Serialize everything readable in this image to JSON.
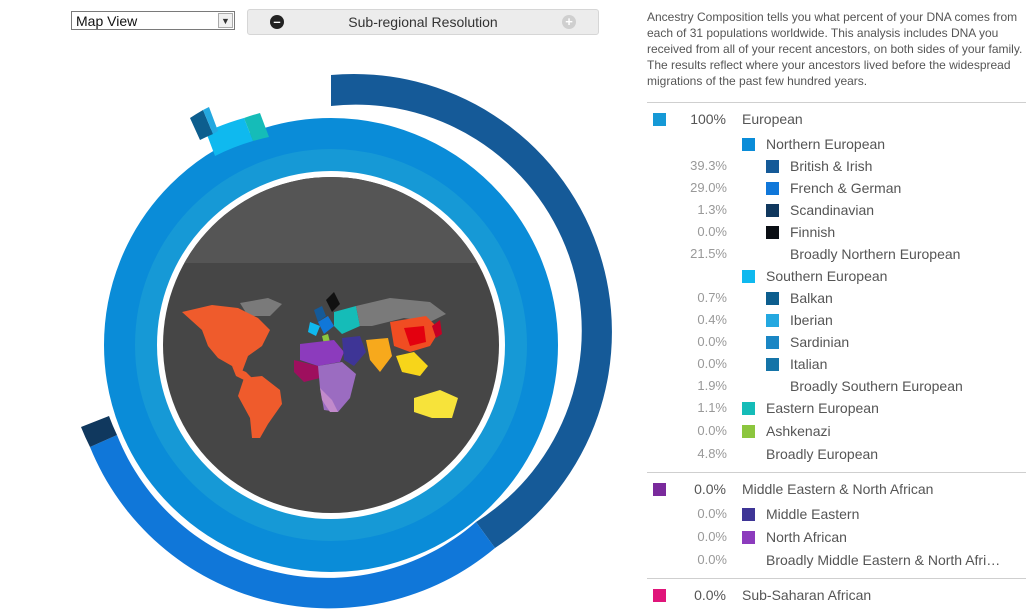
{
  "controls": {
    "view_select": "Map View",
    "resolution_label": "Sub-regional Resolution"
  },
  "description": "Ancestry Composition tells you what percent of your DNA comes from each of 31 populations worldwide. This analysis includes DNA you received from all of your recent ancestors, on both sides of your family. The results reflect where your ancestors lived before the widespread migrations of the past few hundred years.",
  "colors": {
    "european": "#1699d6",
    "northern_european": "#0a8cd8",
    "british_irish": "#155a98",
    "french_german": "#1077d9",
    "scandinavian": "#10385e",
    "finnish": "#0a0e14",
    "southern_european": "#0fb9ef",
    "balkan": "#0d5e8e",
    "iberian": "#24a8e0",
    "sardinian": "#1a86c4",
    "italian": "#1574a8",
    "eastern_european": "#15bcb8",
    "ashkenazi": "#8cc63e",
    "middle_eastern_north_african": "#7a2a9c",
    "middle_eastern": "#3e3596",
    "north_african": "#8c3bbd",
    "sub_saharan_african": "#e0157a",
    "map_background": "#464646"
  },
  "legend": [
    {
      "key": "european",
      "pct": "100%",
      "label": "European",
      "level": 0,
      "swatch": "european"
    },
    {
      "key": "northern",
      "pct": "",
      "label": "Northern European",
      "level": 1,
      "swatch": "northern_european"
    },
    {
      "key": "british",
      "pct": "39.3%",
      "label": "British & Irish",
      "level": 2,
      "swatch": "british_irish"
    },
    {
      "key": "french",
      "pct": "29.0%",
      "label": "French & German",
      "level": 2,
      "swatch": "french_german"
    },
    {
      "key": "scand",
      "pct": "1.3%",
      "label": "Scandinavian",
      "level": 2,
      "swatch": "scandinavian"
    },
    {
      "key": "finnish",
      "pct": "0.0%",
      "label": "Finnish",
      "level": 2,
      "swatch": "finnish"
    },
    {
      "key": "broad_north",
      "pct": "21.5%",
      "label": "Broadly Northern European",
      "level": 2,
      "swatch": ""
    },
    {
      "key": "southern",
      "pct": "",
      "label": "Southern European",
      "level": 1,
      "swatch": "southern_european"
    },
    {
      "key": "balkan",
      "pct": "0.7%",
      "label": "Balkan",
      "level": 2,
      "swatch": "balkan"
    },
    {
      "key": "iberian",
      "pct": "0.4%",
      "label": "Iberian",
      "level": 2,
      "swatch": "iberian"
    },
    {
      "key": "sardinian",
      "pct": "0.0%",
      "label": "Sardinian",
      "level": 2,
      "swatch": "sardinian"
    },
    {
      "key": "italian",
      "pct": "0.0%",
      "label": "Italian",
      "level": 2,
      "swatch": "italian"
    },
    {
      "key": "broad_south",
      "pct": "1.9%",
      "label": "Broadly Southern European",
      "level": 2,
      "swatch": ""
    },
    {
      "key": "eastern",
      "pct": "1.1%",
      "label": "Eastern European",
      "level": 1,
      "swatch": "eastern_european"
    },
    {
      "key": "ashkenazi",
      "pct": "0.0%",
      "label": "Ashkenazi",
      "level": 1,
      "swatch": "ashkenazi"
    },
    {
      "key": "broad_eu",
      "pct": "4.8%",
      "label": "Broadly European",
      "level": 1,
      "swatch": ""
    },
    {
      "key": "mena",
      "pct": "0.0%",
      "label": "Middle Eastern & North African",
      "level": 0,
      "swatch": "middle_eastern_north_african"
    },
    {
      "key": "middle_eastern",
      "pct": "0.0%",
      "label": "Middle Eastern",
      "level": 1,
      "swatch": "middle_eastern"
    },
    {
      "key": "north_african",
      "pct": "0.0%",
      "label": "North African",
      "level": 1,
      "swatch": "north_african"
    },
    {
      "key": "broad_mena",
      "pct": "0.0%",
      "label": "Broadly Middle Eastern & North Afri…",
      "level": 1,
      "swatch": ""
    },
    {
      "key": "ssa",
      "pct": "0.0%",
      "label": "Sub-Saharan African",
      "level": 0,
      "swatch": "sub_saharan_african"
    }
  ]
}
